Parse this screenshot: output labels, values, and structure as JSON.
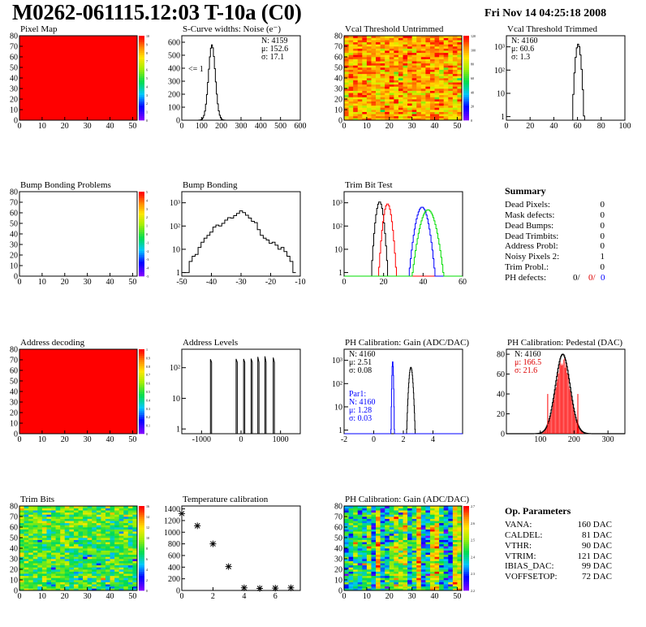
{
  "header": {
    "title": "M0262-061115.12:03 T-10a (C0)",
    "date": "Fri Nov 14 04:25:18 2008"
  },
  "colors": {
    "red": "#ff0000",
    "blue": "#0000ff",
    "green": "#00dd00",
    "black": "#000000"
  },
  "chart_data": [
    {
      "id": "pixel-map",
      "title": "Pixel Map",
      "type": "heatmap",
      "fill": "uniform-max",
      "xlim": [
        0,
        52
      ],
      "ylim": [
        0,
        80
      ],
      "xticks": [
        "0",
        "10",
        "20",
        "30",
        "40",
        "50"
      ],
      "yticks": [
        "0",
        "10",
        "20",
        "30",
        "40",
        "50",
        "60",
        "70",
        "80"
      ],
      "zticks": [
        "0",
        "1",
        "2",
        "3",
        "4",
        "5",
        "6",
        "7",
        "8",
        "9",
        "10"
      ]
    },
    {
      "id": "noise",
      "title": "S-Curve widths: Noise (e⁻)",
      "type": "histogram",
      "xlim": [
        0,
        600
      ],
      "ylim": [
        0,
        650
      ],
      "xticks": [
        "0",
        "100",
        "200",
        "300",
        "400",
        "500",
        "600"
      ],
      "yticks": [
        "0",
        "100",
        "200",
        "300",
        "400",
        "500",
        "600"
      ],
      "stats": [
        "N:  4159",
        "μ:  152.6",
        "σ:  17.1"
      ],
      "annotation": "<= 1",
      "mean": 152.6,
      "sigma": 17.1,
      "peak": 580
    },
    {
      "id": "vcal-untrimmed",
      "title": "Vcal Threshold Untrimmed",
      "type": "heatmap",
      "fill": "random-orange",
      "xlim": [
        0,
        52
      ],
      "ylim": [
        0,
        80
      ],
      "xticks": [
        "0",
        "10",
        "20",
        "30",
        "40",
        "50"
      ],
      "yticks": [
        "0",
        "10",
        "20",
        "30",
        "40",
        "50",
        "60",
        "70",
        "80"
      ],
      "zticks": [
        "0",
        "20",
        "40",
        "60",
        "80",
        "100",
        "120"
      ]
    },
    {
      "id": "vcal-trimmed",
      "title": "Vcal Threshold Trimmed",
      "type": "histogram",
      "log": true,
      "xlim": [
        0,
        100
      ],
      "xticks": [
        "0",
        "20",
        "40",
        "60",
        "80",
        "100"
      ],
      "yticks": [
        "1",
        "10",
        "10²",
        "10³"
      ],
      "stats": [
        "N:  4160",
        "μ:  60.6",
        "σ:   1.3"
      ],
      "mean": 60.6,
      "sigma": 1.3,
      "peak": 1300
    },
    {
      "id": "bump-problems",
      "title": "Bump Bonding Problems",
      "type": "heatmap",
      "fill": "empty",
      "xlim": [
        0,
        52
      ],
      "ylim": [
        0,
        80
      ],
      "xticks": [
        "0",
        "10",
        "20",
        "30",
        "40",
        "50"
      ],
      "yticks": [
        "0",
        "10",
        "20",
        "30",
        "40",
        "50",
        "60",
        "70",
        "80"
      ],
      "zticks": [
        "-5",
        "-4",
        "-3",
        "-2",
        "-1",
        "0",
        "1",
        "2",
        "3",
        "4",
        "5"
      ]
    },
    {
      "id": "bump-bonding",
      "title": "Bump Bonding",
      "type": "histogram",
      "log": true,
      "xlim": [
        -50,
        -10
      ],
      "xticks": [
        "-50",
        "-40",
        "-30",
        "-20",
        "-10"
      ],
      "yticks": [
        "1",
        "10",
        "10²",
        "10³"
      ],
      "x": [
        -49,
        -48,
        -47,
        -46,
        -45,
        -44,
        -43,
        -42,
        -41,
        -40,
        -39,
        -38,
        -37,
        -36,
        -35,
        -34,
        -33,
        -32,
        -31,
        -30,
        -29,
        -28,
        -27,
        -26,
        -25,
        -24,
        -23,
        -22,
        -21,
        -20,
        -19,
        -18,
        -17,
        -16,
        -15,
        -14,
        -13,
        -12
      ],
      "values": [
        1,
        1,
        3,
        5,
        6,
        12,
        20,
        30,
        40,
        55,
        90,
        110,
        100,
        130,
        180,
        230,
        220,
        280,
        350,
        450,
        380,
        290,
        220,
        160,
        140,
        70,
        40,
        30,
        25,
        18,
        20,
        15,
        10,
        12,
        8,
        5,
        3,
        1
      ]
    },
    {
      "id": "trim-bit-test",
      "title": "Trim Bit Test",
      "type": "histogram",
      "log": true,
      "xlim": [
        0,
        60
      ],
      "xticks": [
        "0",
        "20",
        "40",
        "60"
      ],
      "yticks": [
        "1",
        "10",
        "10²",
        "10³"
      ],
      "series": [
        {
          "color": "black",
          "mean": 18,
          "sigma": 1.1,
          "peak": 1100
        },
        {
          "color": "red",
          "mean": 22,
          "sigma": 1.2,
          "peak": 900
        },
        {
          "color": "blue",
          "mean": 39.5,
          "sigma": 1.8,
          "peak": 650
        },
        {
          "color": "green",
          "mean": 42.5,
          "sigma": 2.2,
          "peak": 500
        }
      ]
    },
    {
      "id": "address-decoding",
      "title": "Address decoding",
      "type": "heatmap",
      "fill": "uniform-max",
      "xlim": [
        0,
        52
      ],
      "ylim": [
        0,
        80
      ],
      "xticks": [
        "0",
        "10",
        "20",
        "30",
        "40",
        "50"
      ],
      "yticks": [
        "0",
        "10",
        "20",
        "30",
        "40",
        "50",
        "60",
        "70",
        "80"
      ],
      "zticks": [
        "0",
        "0.1",
        "0.2",
        "0.3",
        "0.4",
        "0.5",
        "0.6",
        "0.7",
        "0.8",
        "0.9",
        "1"
      ]
    },
    {
      "id": "address-levels",
      "title": "Address Levels",
      "type": "histogram",
      "log": true,
      "xlim": [
        -1500,
        1500
      ],
      "xticks": [
        "-1000",
        "0",
        "1000"
      ],
      "yticks": [
        "1",
        "10",
        "10²"
      ],
      "peaks": [
        -760,
        -110,
        80,
        270,
        440,
        620,
        830
      ]
    },
    {
      "id": "ph-gain",
      "title": "PH Calibration: Gain (ADC/DAC)",
      "type": "histogram",
      "log": true,
      "xlim": [
        -2,
        6
      ],
      "xticks": [
        "-2",
        "0",
        "2",
        "4"
      ],
      "yticks": [
        "1",
        "10",
        "10²",
        "10³"
      ],
      "stats": [
        "N:  4160",
        "μ:  2.51",
        "σ:  0.08"
      ],
      "stats2": [
        "Par1:",
        "N:  4160",
        "μ:  1.28",
        "σ:  0.03"
      ],
      "series": [
        {
          "color": "black",
          "mean": 2.51,
          "sigma": 0.08,
          "peak": 500
        },
        {
          "color": "blue",
          "mean": 1.28,
          "sigma": 0.03,
          "peak": 900
        }
      ]
    },
    {
      "id": "ph-pedestal",
      "title": "PH Calibration: Pedestal (DAC)",
      "type": "histogram",
      "xlim": [
        0,
        350
      ],
      "ylim": [
        0,
        85
      ],
      "xticks": [
        "100",
        "200",
        "300"
      ],
      "yticks": [
        "0",
        "20",
        "40",
        "60",
        "80"
      ],
      "stats": [
        "N:  4160",
        "μ:  166.5",
        "σ:  21.6"
      ],
      "mean": 166.5,
      "sigma": 21.6,
      "peak": 80,
      "markers": [
        122,
        211
      ]
    },
    {
      "id": "trim-bits",
      "title": "Trim Bits",
      "type": "heatmap",
      "fill": "random-green",
      "xlim": [
        0,
        52
      ],
      "ylim": [
        0,
        80
      ],
      "xticks": [
        "0",
        "10",
        "20",
        "30",
        "40",
        "50"
      ],
      "yticks": [
        "0",
        "10",
        "20",
        "30",
        "40",
        "50",
        "60",
        "70",
        "80"
      ],
      "zticks": [
        "0",
        "2",
        "4",
        "6",
        "8",
        "10",
        "12",
        "14",
        "16"
      ]
    },
    {
      "id": "temperature",
      "title": "Temperature calibration",
      "type": "scatter",
      "xlim": [
        0,
        7.6
      ],
      "ylim": [
        0,
        1450
      ],
      "xticks": [
        "0",
        "2",
        "4",
        "6"
      ],
      "yticks": [
        "0",
        "200",
        "400",
        "600",
        "800",
        "1000",
        "1200",
        "1400"
      ],
      "x": [
        0,
        1,
        2,
        3,
        4,
        5,
        6,
        7
      ],
      "values": [
        1320,
        1110,
        800,
        410,
        45,
        35,
        40,
        45
      ]
    },
    {
      "id": "ph-gain-map",
      "title": "PH Calibration: Gain (ADC/DAC)",
      "type": "heatmap",
      "fill": "striped",
      "xlim": [
        0,
        52
      ],
      "ylim": [
        0,
        80
      ],
      "xticks": [
        "0",
        "10",
        "20",
        "30",
        "40",
        "50"
      ],
      "yticks": [
        "0",
        "10",
        "20",
        "30",
        "40",
        "50",
        "60",
        "70",
        "80"
      ],
      "zticks": [
        "2.2",
        "2.3",
        "2.4",
        "2.5",
        "2.6",
        "2.7"
      ]
    }
  ],
  "summary": {
    "title": "Summary",
    "rows": [
      {
        "label": "Dead Pixels:",
        "value": "0"
      },
      {
        "label": "Mask defects:",
        "value": "0"
      },
      {
        "label": "Dead Bumps:",
        "value": "0"
      },
      {
        "label": "Dead Trimbits:",
        "value": "0"
      },
      {
        "label": "Address Probl:",
        "value": "0"
      },
      {
        "label": "Noisy Pixels 2:",
        "value": "1"
      },
      {
        "label": "Trim Probl.:",
        "value": "0"
      }
    ],
    "ph_defects": {
      "label": "PH defects:",
      "values": [
        "0/",
        "0/",
        "0"
      ]
    }
  },
  "op_params": {
    "title": "Op. Parameters",
    "rows": [
      {
        "label": "VANA:",
        "value": "160 DAC"
      },
      {
        "label": "CALDEL:",
        "value": "81 DAC"
      },
      {
        "label": "VTHR:",
        "value": "90 DAC"
      },
      {
        "label": "VTRIM:",
        "value": "121 DAC"
      },
      {
        "label": "IBIAS_DAC:",
        "value": "99 DAC"
      },
      {
        "label": "VOFFSETOP:",
        "value": "72 DAC"
      }
    ]
  }
}
